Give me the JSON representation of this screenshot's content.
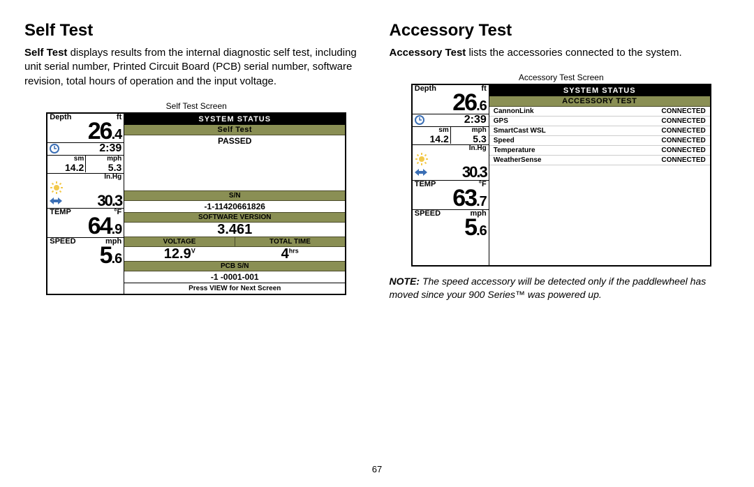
{
  "page_number": "67",
  "left": {
    "heading": "Self Test",
    "body_lead": "Self Test",
    "body_rest": " displays results from the internal diagnostic self test, including unit serial number, Printed Circuit Board (PCB) serial number, software revision, total hours of operation and the input voltage.",
    "caption": "Self Test Screen"
  },
  "right": {
    "heading": "Accessory Test",
    "body_lead": "Accessory Test",
    "body_rest": " lists the accessories connected to the system.",
    "caption": "Accessory Test Screen",
    "note_lead": "NOTE:",
    "note_rest": " The speed accessory will be detected only if the paddlewheel has moved since your 900 Series™ was powered up."
  },
  "sidebar1": {
    "depth_label": "Depth",
    "depth_unit": "ft",
    "depth_val": "26",
    "depth_dec": ".4",
    "time": "2:39",
    "sm_label": "sm",
    "mph_label": "mph",
    "sm_val": "14.2",
    "mph_val": "5.3",
    "inhg_label": "In.Hg",
    "inhg_val": "30.3",
    "temp_label": "TEMP",
    "temp_unit": "°F",
    "temp_val": "64",
    "temp_dec": ".9",
    "speed_label": "SPEED",
    "speed_unit": "mph",
    "speed_val": "5",
    "speed_dec": ".6"
  },
  "sidebar2": {
    "depth_label": "Depth",
    "depth_unit": "ft",
    "depth_val": "26",
    "depth_dec": ".6",
    "time": "2:39",
    "sm_label": "sm",
    "mph_label": "mph",
    "sm_val": "14.2",
    "mph_val": "5.3",
    "inhg_label": "In.Hg",
    "inhg_val": "30.3",
    "temp_label": "TEMP",
    "temp_unit": "°F",
    "temp_val": "63",
    "temp_dec": ".7",
    "speed_label": "SPEED",
    "speed_unit": "mph",
    "speed_val": "5",
    "speed_dec": ".6"
  },
  "selftest": {
    "system_status": "SYSTEM STATUS",
    "title": "Self Test",
    "status": "PASSED",
    "sn_label": "S/N",
    "sn_val": "-1-11420661826",
    "sw_label": "SOFTWARE VERSION",
    "sw_val": "3.461",
    "voltage_label": "VOLTAGE",
    "voltage_val": "12.9",
    "voltage_unit": "V",
    "time_label": "TOTAL TIME",
    "time_val": "4",
    "time_unit": "hrs",
    "pcb_label": "PCB S/N",
    "pcb_val": "-1 -0001-001",
    "footer": "Press VIEW for Next Screen"
  },
  "accessory": {
    "system_status": "SYSTEM STATUS",
    "title": "ACCESSORY TEST",
    "items": [
      {
        "name": "CannonLink",
        "status": "CONNECTED"
      },
      {
        "name": "GPS",
        "status": "CONNECTED"
      },
      {
        "name": "SmartCast WSL",
        "status": "CONNECTED"
      },
      {
        "name": "Speed",
        "status": "CONNECTED"
      },
      {
        "name": "Temperature",
        "status": "CONNECTED"
      },
      {
        "name": "WeatherSense",
        "status": "CONNECTED"
      }
    ]
  },
  "colors": {
    "olive": "#8a8f54",
    "sun": "#f2c94c",
    "arrow": "#3b6fb5",
    "clock": "#3b6fb5"
  }
}
